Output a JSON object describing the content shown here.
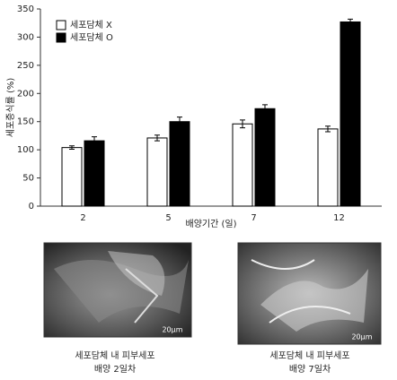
{
  "chart_data": {
    "type": "bar",
    "y_label": "세포증식률 (%)",
    "x_label": "배양기간 (일)",
    "categories": [
      "2",
      "5",
      "7",
      "12"
    ],
    "series": [
      {
        "name": "세포담체 X",
        "color": "#ffffff",
        "values": [
          104,
          121,
          146,
          137
        ],
        "errors": [
          3,
          5,
          7,
          5
        ]
      },
      {
        "name": "세포담체 O",
        "color": "#000000",
        "values": [
          116,
          150,
          173,
          327
        ],
        "errors": [
          7,
          8,
          7,
          5
        ]
      }
    ],
    "ylim": [
      0,
      350
    ],
    "yticks": [
      0,
      50,
      100,
      150,
      200,
      250,
      300,
      350
    ],
    "legend": "upper-left",
    "grid": false
  },
  "images": [
    {
      "scale_label": "20μm",
      "caption": [
        "세포담체 내 피부세포",
        "배양 2일차"
      ]
    },
    {
      "scale_label": "20μm",
      "caption": [
        "세포담체 내 피부세포",
        "배양 7일차"
      ]
    }
  ]
}
